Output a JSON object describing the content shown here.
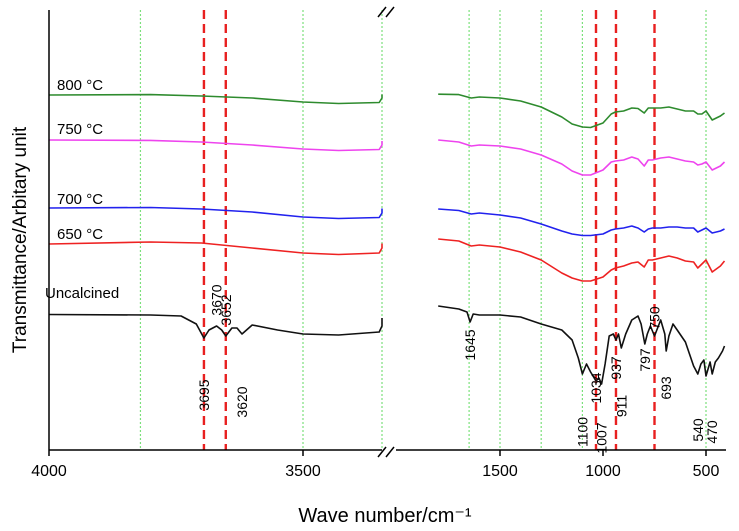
{
  "chart_data": {
    "type": "line",
    "xlabel": "Wave number/cm⁻¹",
    "ylabel": "Transmittance/Arbitary unit",
    "x_axis": {
      "reversed": true,
      "broken": true,
      "left_range": [
        4000,
        3000
      ],
      "right_range": [
        1800,
        400
      ],
      "tick_labels": [
        "4000",
        "3500",
        "1500",
        "1000",
        "500"
      ],
      "tick_values": [
        4000,
        3500,
        1500,
        1000,
        500
      ]
    },
    "reference_lines": {
      "red_dashed": [
        3695,
        3652,
        1034,
        937,
        750
      ],
      "green_dotted": [
        3820,
        3500,
        3200,
        1650,
        1500,
        1300,
        1100,
        500
      ]
    },
    "series": [
      {
        "name": "800 °C",
        "color": "#2e8b2e",
        "points": [
          [
            4000,
            25
          ],
          [
            3800,
            24.6
          ],
          [
            3700,
            26
          ],
          [
            3600,
            28
          ],
          [
            3500,
            32
          ],
          [
            3430,
            33.5
          ],
          [
            3350,
            32.5
          ],
          [
            3200,
            28
          ],
          [
            3100,
            25
          ],
          [
            3010,
            24.5
          ],
          [
            1800,
            24.2
          ],
          [
            1700,
            24.6
          ],
          [
            1640,
            28
          ],
          [
            1600,
            27
          ],
          [
            1500,
            28
          ],
          [
            1400,
            31
          ],
          [
            1300,
            37
          ],
          [
            1200,
            47
          ],
          [
            1150,
            54
          ],
          [
            1100,
            57
          ],
          [
            1060,
            57.5
          ],
          [
            1000,
            53
          ],
          [
            960,
            44
          ],
          [
            940,
            42
          ],
          [
            900,
            41
          ],
          [
            860,
            38
          ],
          [
            830,
            38.5
          ],
          [
            800,
            43
          ],
          [
            780,
            38
          ],
          [
            760,
            38
          ],
          [
            720,
            38
          ],
          [
            680,
            37
          ],
          [
            640,
            39
          ],
          [
            600,
            41
          ],
          [
            560,
            41
          ],
          [
            540,
            44
          ],
          [
            520,
            44
          ],
          [
            500,
            41
          ],
          [
            470,
            50
          ],
          [
            430,
            46
          ],
          [
            410,
            43
          ]
        ]
      },
      {
        "name": "750 °C",
        "color": "#ee44ee",
        "points": [
          [
            4000,
            38
          ],
          [
            3800,
            38.4
          ],
          [
            3700,
            40
          ],
          [
            3600,
            43
          ],
          [
            3500,
            47
          ],
          [
            3430,
            48.5
          ],
          [
            3350,
            47.5
          ],
          [
            3200,
            43
          ],
          [
            3100,
            40
          ],
          [
            3010,
            39
          ],
          [
            1800,
            38
          ],
          [
            1700,
            40
          ],
          [
            1640,
            44
          ],
          [
            1600,
            43
          ],
          [
            1500,
            44
          ],
          [
            1400,
            47
          ],
          [
            1300,
            53
          ],
          [
            1200,
            62
          ],
          [
            1150,
            69
          ],
          [
            1100,
            73
          ],
          [
            1060,
            73
          ],
          [
            1000,
            68
          ],
          [
            960,
            60
          ],
          [
            940,
            59
          ],
          [
            900,
            58
          ],
          [
            860,
            55
          ],
          [
            830,
            57
          ],
          [
            800,
            64
          ],
          [
            780,
            58
          ],
          [
            760,
            58
          ],
          [
            720,
            56
          ],
          [
            680,
            55
          ],
          [
            640,
            57
          ],
          [
            600,
            59
          ],
          [
            560,
            60
          ],
          [
            540,
            63
          ],
          [
            520,
            62
          ],
          [
            500,
            60
          ],
          [
            470,
            68
          ],
          [
            430,
            64
          ],
          [
            410,
            60
          ]
        ]
      },
      {
        "name": "700 °C",
        "color": "#2222ee",
        "points": [
          [
            4000,
            70
          ],
          [
            3800,
            69.5
          ],
          [
            3700,
            71
          ],
          [
            3600,
            74
          ],
          [
            3500,
            79
          ],
          [
            3430,
            80.5
          ],
          [
            3350,
            79.5
          ],
          [
            3200,
            75
          ],
          [
            3100,
            72
          ],
          [
            3010,
            70.5
          ],
          [
            1800,
            71
          ],
          [
            1700,
            72.5
          ],
          [
            1640,
            76
          ],
          [
            1600,
            75
          ],
          [
            1500,
            77
          ],
          [
            1400,
            80
          ],
          [
            1300,
            86
          ],
          [
            1200,
            93
          ],
          [
            1150,
            96
          ],
          [
            1100,
            97.5
          ],
          [
            1060,
            97.5
          ],
          [
            1000,
            96
          ],
          [
            960,
            92
          ],
          [
            940,
            91
          ],
          [
            900,
            90
          ],
          [
            860,
            88
          ],
          [
            830,
            90
          ],
          [
            800,
            94
          ],
          [
            780,
            91
          ],
          [
            760,
            90
          ],
          [
            720,
            90
          ],
          [
            680,
            89
          ],
          [
            640,
            89
          ],
          [
            600,
            90
          ],
          [
            560,
            90
          ],
          [
            540,
            94
          ],
          [
            520,
            92
          ],
          [
            500,
            90
          ],
          [
            470,
            95
          ],
          [
            430,
            93
          ],
          [
            410,
            91
          ]
        ]
      },
      {
        "name": "650 °C",
        "color": "#ee2222",
        "points": [
          [
            4000,
            84
          ],
          [
            3800,
            82
          ],
          [
            3700,
            83
          ],
          [
            3600,
            88
          ],
          [
            3500,
            93
          ],
          [
            3430,
            94.5
          ],
          [
            3350,
            93
          ],
          [
            3200,
            88
          ],
          [
            3100,
            85
          ],
          [
            3010,
            83.5
          ],
          [
            1800,
            79
          ],
          [
            1700,
            81
          ],
          [
            1640,
            86
          ],
          [
            1600,
            85
          ],
          [
            1500,
            87
          ],
          [
            1400,
            92
          ],
          [
            1300,
            100
          ],
          [
            1200,
            113
          ],
          [
            1150,
            118
          ],
          [
            1100,
            121
          ],
          [
            1060,
            121
          ],
          [
            1000,
            117
          ],
          [
            960,
            110
          ],
          [
            940,
            108
          ],
          [
            900,
            106
          ],
          [
            860,
            103
          ],
          [
            830,
            102
          ],
          [
            800,
            107
          ],
          [
            780,
            100
          ],
          [
            760,
            100
          ],
          [
            720,
            98
          ],
          [
            680,
            96
          ],
          [
            640,
            98
          ],
          [
            600,
            101
          ],
          [
            560,
            102
          ],
          [
            540,
            108
          ],
          [
            520,
            104
          ],
          [
            500,
            100
          ],
          [
            470,
            112
          ],
          [
            430,
            106
          ],
          [
            410,
            101
          ]
        ]
      },
      {
        "name": "Uncalcined",
        "color": "#111111",
        "points": [
          [
            4000,
            108.5
          ],
          [
            3800,
            109
          ],
          [
            3740,
            110
          ],
          [
            3710,
            118
          ],
          [
            3695,
            132
          ],
          [
            3685,
            124
          ],
          [
            3670,
            120
          ],
          [
            3660,
            124
          ],
          [
            3652,
            130
          ],
          [
            3640,
            122
          ],
          [
            3630,
            122
          ],
          [
            3620,
            128
          ],
          [
            3600,
            119
          ],
          [
            3550,
            124
          ],
          [
            3500,
            128
          ],
          [
            3430,
            129
          ],
          [
            3350,
            126
          ],
          [
            3200,
            120
          ],
          [
            3100,
            116
          ],
          [
            3010,
            112
          ],
          [
            1800,
            100
          ],
          [
            1700,
            103
          ],
          [
            1660,
            106
          ],
          [
            1645,
            116
          ],
          [
            1630,
            108
          ],
          [
            1600,
            109
          ],
          [
            1500,
            109
          ],
          [
            1400,
            111
          ],
          [
            1300,
            118
          ],
          [
            1200,
            124
          ],
          [
            1150,
            134
          ],
          [
            1120,
            152
          ],
          [
            1100,
            168
          ],
          [
            1080,
            158
          ],
          [
            1060,
            166
          ],
          [
            1034,
            175
          ],
          [
            1020,
            172
          ],
          [
            1007,
            178
          ],
          [
            990,
            158
          ],
          [
            970,
            130
          ],
          [
            950,
            128
          ],
          [
            937,
            134
          ],
          [
            925,
            128
          ],
          [
            911,
            142
          ],
          [
            890,
            128
          ],
          [
            860,
            114
          ],
          [
            830,
            110
          ],
          [
            815,
            118
          ],
          [
            797,
            138
          ],
          [
            785,
            128
          ],
          [
            770,
            120
          ],
          [
            750,
            130
          ],
          [
            735,
            122
          ],
          [
            720,
            114
          ],
          [
            700,
            128
          ],
          [
            693,
            145
          ],
          [
            680,
            130
          ],
          [
            660,
            118
          ],
          [
            640,
            124
          ],
          [
            620,
            130
          ],
          [
            600,
            136
          ],
          [
            580,
            148
          ],
          [
            560,
            160
          ],
          [
            540,
            168
          ],
          [
            525,
            158
          ],
          [
            510,
            154
          ],
          [
            500,
            170
          ],
          [
            480,
            156
          ],
          [
            470,
            168
          ],
          [
            455,
            156
          ],
          [
            440,
            152
          ],
          [
            420,
            145
          ],
          [
            410,
            140
          ]
        ]
      }
    ],
    "series_labels": [
      "800 °C",
      "750 °C",
      "700 °C",
      "650 °C",
      "Uncalcined"
    ],
    "annotations": [
      "3695",
      "3670",
      "3652",
      "3620",
      "1645",
      "1100",
      "1034",
      "1007",
      "937",
      "911",
      "797",
      "750",
      "693",
      "540",
      "470"
    ],
    "grid": false,
    "legend": "inline labels at left of each curve"
  }
}
